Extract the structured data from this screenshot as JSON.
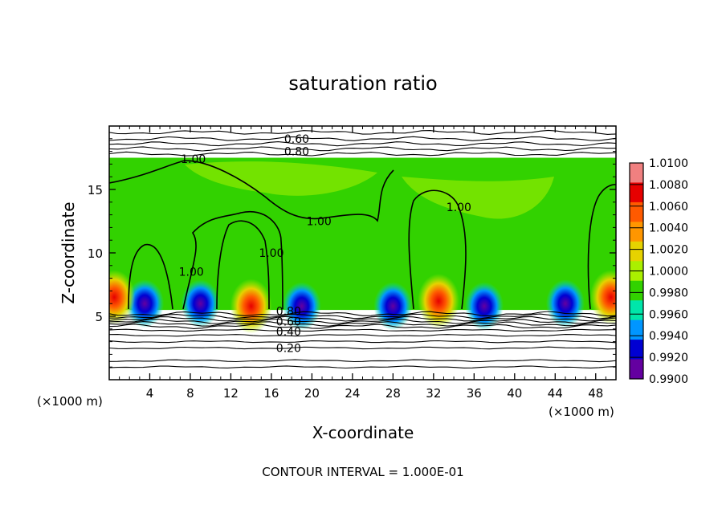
{
  "chart_data": {
    "type": "heatmap",
    "title": "saturation ratio",
    "xlabel": "X-coordinate",
    "ylabel": "Z-coordinate",
    "x_unit_left": "(×1000 m)",
    "x_unit_right": "(×1000 m)",
    "footer": "CONTOUR INTERVAL = 1.000E-01",
    "xlim": [
      0,
      50
    ],
    "ylim": [
      0,
      20
    ],
    "x_ticks": [
      4,
      8,
      12,
      16,
      20,
      24,
      28,
      32,
      36,
      40,
      44,
      48
    ],
    "y_ticks": [
      5,
      10,
      15
    ],
    "color_range": [
      0.99,
      1.01
    ],
    "colorbar": {
      "labels": [
        "1.0100",
        "1.0080",
        "1.0060",
        "1.0040",
        "1.0020",
        "1.0000",
        "0.9980",
        "0.9960",
        "0.9940",
        "0.9920",
        "0.9900"
      ],
      "colors": [
        "#f08080",
        "#e60000",
        "#ff5a00",
        "#ff9600",
        "#e6d200",
        "#aaf000",
        "#32d200",
        "#00e6aa",
        "#0096ff",
        "#0000d2",
        "#6400a0"
      ]
    },
    "contour_labels": [
      {
        "text": "0.60",
        "x": 18.5,
        "y": 19.0
      },
      {
        "text": "0.80",
        "x": 18.5,
        "y": 18.0
      },
      {
        "text": "1.00",
        "x": 8.3,
        "y": 17.4
      },
      {
        "text": "1.00",
        "x": 20.7,
        "y": 12.5
      },
      {
        "text": "1.00",
        "x": 16.0,
        "y": 10.0
      },
      {
        "text": "1.00",
        "x": 8.1,
        "y": 8.5
      },
      {
        "text": "1.00",
        "x": 34.5,
        "y": 13.6
      },
      {
        "text": "0.80",
        "x": 17.7,
        "y": 5.4
      },
      {
        "text": "0.60",
        "x": 17.7,
        "y": 4.6
      },
      {
        "text": "0.40",
        "x": 17.7,
        "y": 3.8
      },
      {
        "text": "0.20",
        "x": 17.7,
        "y": 2.5
      }
    ],
    "isolines_upper_z": [
      19.5,
      19.0,
      18.6,
      18.2,
      17.8
    ],
    "isolines_lower_z": [
      5.2,
      5.0,
      4.8,
      4.6,
      4.4,
      4.2,
      3.9,
      3.5,
      3.0,
      2.5,
      1.5,
      1.0
    ],
    "cloud_layer_z": [
      5.5,
      17.5
    ],
    "cold_cores": [
      {
        "x": 3.5,
        "z": 6.0
      },
      {
        "x": 9.0,
        "z": 6.0
      },
      {
        "x": 19.0,
        "z": 5.8
      },
      {
        "x": 28.0,
        "z": 5.8
      },
      {
        "x": 37.0,
        "z": 5.8
      },
      {
        "x": 45.0,
        "z": 6.0
      }
    ],
    "warm_cores": [
      {
        "x": 0.5,
        "z": 6.5
      },
      {
        "x": 14.0,
        "z": 5.8
      },
      {
        "x": 32.5,
        "z": 6.2
      },
      {
        "x": 49.5,
        "z": 6.5
      }
    ]
  }
}
